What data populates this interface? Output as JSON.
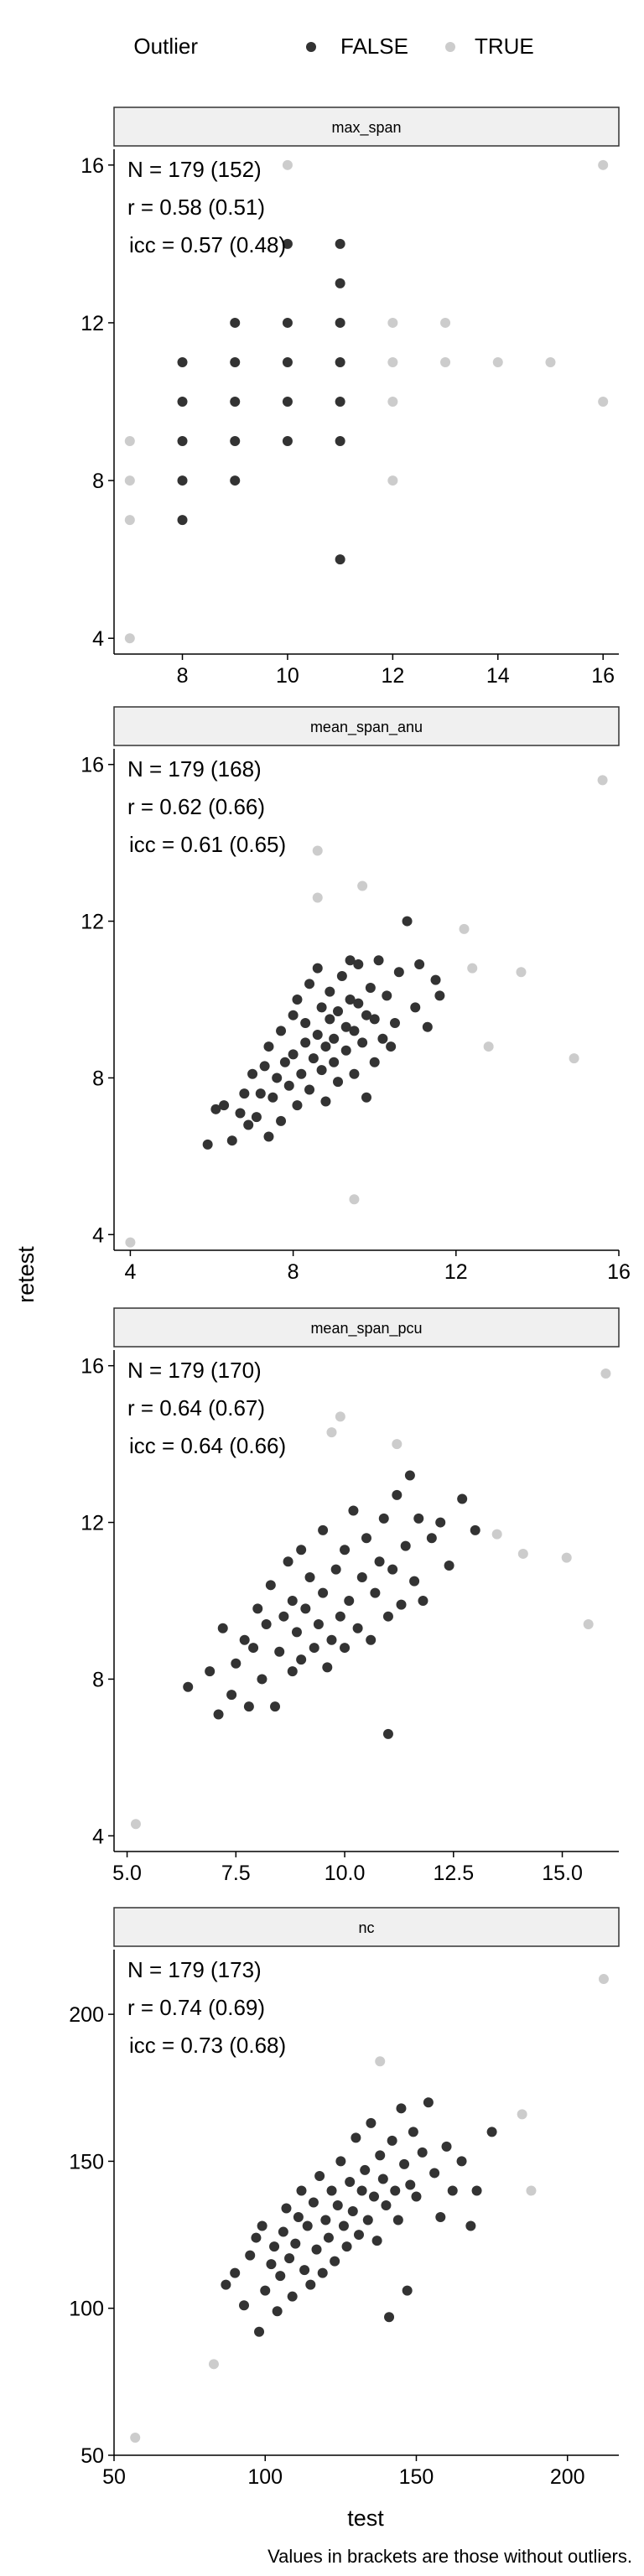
{
  "legend": {
    "title": "Outlier",
    "items": [
      {
        "label": "FALSE",
        "color": "#333333"
      },
      {
        "label": "TRUE",
        "color": "#cccccc"
      }
    ]
  },
  "xlabel": "test",
  "ylabel": "retest",
  "caption": "Values in brackets are those without outliers.",
  "colors": {
    "normal": "#333333",
    "outlier": "#cccccc",
    "strip_fill": "#f0f0f0"
  },
  "chart_data": [
    {
      "type": "scatter",
      "title": "max_span",
      "stats": [
        "N = 179 (152)",
        "r = 0.58 (0.51)",
        "icc = 0.57 (0.48)"
      ],
      "xlim": [
        6.7,
        16.3
      ],
      "ylim": [
        3.6,
        16.4
      ],
      "xticks": [
        8,
        10,
        12,
        14,
        16
      ],
      "xtick_labels": [
        "8",
        "10",
        "12",
        "14",
        "16"
      ],
      "yticks": [
        4,
        8,
        12,
        16
      ],
      "ytick_labels": [
        "4",
        "8",
        "12",
        "16"
      ],
      "normal": [
        [
          8,
          7
        ],
        [
          8,
          8
        ],
        [
          8,
          9
        ],
        [
          8,
          10
        ],
        [
          8,
          11
        ],
        [
          9,
          8
        ],
        [
          9,
          9
        ],
        [
          9,
          10
        ],
        [
          9,
          11
        ],
        [
          9,
          12
        ],
        [
          10,
          9
        ],
        [
          10,
          10
        ],
        [
          10,
          11
        ],
        [
          10,
          12
        ],
        [
          10,
          14
        ],
        [
          11,
          6
        ],
        [
          11,
          9
        ],
        [
          11,
          10
        ],
        [
          11,
          11
        ],
        [
          11,
          12
        ],
        [
          11,
          13
        ],
        [
          11,
          14
        ]
      ],
      "outlier": [
        [
          7,
          4
        ],
        [
          7,
          7
        ],
        [
          7,
          8
        ],
        [
          7,
          9
        ],
        [
          10,
          16
        ],
        [
          12,
          8
        ],
        [
          12,
          10
        ],
        [
          12,
          11
        ],
        [
          12,
          12
        ],
        [
          13,
          11
        ],
        [
          13,
          12
        ],
        [
          14,
          11
        ],
        [
          15,
          11
        ],
        [
          16,
          10
        ],
        [
          16,
          16
        ]
      ]
    },
    {
      "type": "scatter",
      "title": "mean_span_anu",
      "stats": [
        "N = 179 (168)",
        "r = 0.62 (0.66)",
        "icc = 0.61 (0.65)"
      ],
      "xlim": [
        3.6,
        16.0
      ],
      "ylim": [
        3.6,
        16.4
      ],
      "xticks": [
        4,
        8,
        12,
        16
      ],
      "xtick_labels": [
        "4",
        "8",
        "12",
        "16"
      ],
      "yticks": [
        4,
        8,
        12,
        16
      ],
      "ytick_labels": [
        "4",
        "8",
        "12",
        "16"
      ],
      "normal": [
        [
          5.9,
          6.3
        ],
        [
          6.1,
          7.2
        ],
        [
          6.3,
          7.3
        ],
        [
          6.5,
          6.4
        ],
        [
          6.7,
          7.1
        ],
        [
          6.8,
          7.6
        ],
        [
          6.9,
          6.8
        ],
        [
          7.0,
          8.1
        ],
        [
          7.1,
          7.0
        ],
        [
          7.2,
          7.6
        ],
        [
          7.3,
          8.3
        ],
        [
          7.4,
          6.5
        ],
        [
          7.4,
          8.8
        ],
        [
          7.5,
          7.5
        ],
        [
          7.6,
          8.0
        ],
        [
          7.7,
          6.9
        ],
        [
          7.7,
          9.2
        ],
        [
          7.8,
          8.4
        ],
        [
          7.9,
          7.8
        ],
        [
          8.0,
          8.6
        ],
        [
          8.0,
          9.6
        ],
        [
          8.1,
          7.3
        ],
        [
          8.1,
          10.0
        ],
        [
          8.2,
          8.1
        ],
        [
          8.3,
          8.9
        ],
        [
          8.3,
          9.4
        ],
        [
          8.4,
          7.7
        ],
        [
          8.4,
          10.4
        ],
        [
          8.5,
          8.5
        ],
        [
          8.6,
          9.1
        ],
        [
          8.6,
          10.8
        ],
        [
          8.7,
          8.2
        ],
        [
          8.7,
          9.8
        ],
        [
          8.8,
          7.4
        ],
        [
          8.8,
          8.8
        ],
        [
          8.9,
          9.5
        ],
        [
          8.9,
          10.2
        ],
        [
          9.0,
          8.4
        ],
        [
          9.0,
          9.0
        ],
        [
          9.1,
          7.9
        ],
        [
          9.1,
          9.7
        ],
        [
          9.2,
          10.6
        ],
        [
          9.3,
          8.7
        ],
        [
          9.3,
          9.3
        ],
        [
          9.4,
          10.0
        ],
        [
          9.4,
          11.0
        ],
        [
          9.5,
          8.1
        ],
        [
          9.5,
          9.2
        ],
        [
          9.6,
          9.9
        ],
        [
          9.6,
          10.9
        ],
        [
          9.7,
          8.9
        ],
        [
          9.8,
          9.6
        ],
        [
          9.8,
          7.5
        ],
        [
          9.9,
          10.3
        ],
        [
          10.0,
          8.4
        ],
        [
          10.0,
          9.5
        ],
        [
          10.1,
          11.0
        ],
        [
          10.2,
          9.0
        ],
        [
          10.3,
          10.1
        ],
        [
          10.4,
          8.8
        ],
        [
          10.5,
          9.4
        ],
        [
          10.6,
          10.7
        ],
        [
          10.8,
          12.0
        ],
        [
          11.0,
          9.8
        ],
        [
          11.1,
          10.9
        ],
        [
          11.3,
          9.3
        ],
        [
          11.5,
          10.5
        ],
        [
          11.6,
          10.1
        ]
      ],
      "outlier": [
        [
          4.0,
          3.8
        ],
        [
          8.6,
          12.6
        ],
        [
          8.6,
          13.8
        ],
        [
          9.5,
          4.9
        ],
        [
          9.7,
          12.9
        ],
        [
          12.2,
          11.8
        ],
        [
          12.4,
          10.8
        ],
        [
          12.8,
          8.8
        ],
        [
          13.6,
          10.7
        ],
        [
          14.9,
          8.5
        ],
        [
          15.6,
          15.6
        ]
      ]
    },
    {
      "type": "scatter",
      "title": "mean_span_pcu",
      "stats": [
        "N = 179 (170)",
        "r = 0.64 (0.67)",
        "icc = 0.64 (0.66)"
      ],
      "xlim": [
        4.7,
        16.3
      ],
      "ylim": [
        3.6,
        16.4
      ],
      "xticks": [
        5.0,
        7.5,
        10.0,
        12.5,
        15.0
      ],
      "xtick_labels": [
        "5.0",
        "7.5",
        "10.0",
        "12.5",
        "15.0"
      ],
      "yticks": [
        4,
        8,
        12,
        16
      ],
      "ytick_labels": [
        "4",
        "8",
        "12",
        "16"
      ],
      "normal": [
        [
          6.4,
          7.8
        ],
        [
          6.9,
          8.2
        ],
        [
          7.1,
          7.1
        ],
        [
          7.2,
          9.3
        ],
        [
          7.4,
          7.6
        ],
        [
          7.5,
          8.4
        ],
        [
          7.7,
          9.0
        ],
        [
          7.8,
          7.3
        ],
        [
          7.9,
          8.8
        ],
        [
          8.0,
          9.8
        ],
        [
          8.1,
          8.0
        ],
        [
          8.2,
          9.4
        ],
        [
          8.3,
          10.4
        ],
        [
          8.4,
          7.3
        ],
        [
          8.5,
          8.7
        ],
        [
          8.6,
          9.6
        ],
        [
          8.7,
          11.0
        ],
        [
          8.8,
          8.2
        ],
        [
          8.8,
          10.0
        ],
        [
          8.9,
          9.2
        ],
        [
          9.0,
          8.5
        ],
        [
          9.0,
          11.3
        ],
        [
          9.1,
          9.8
        ],
        [
          9.2,
          10.6
        ],
        [
          9.3,
          8.8
        ],
        [
          9.4,
          9.4
        ],
        [
          9.5,
          10.2
        ],
        [
          9.5,
          11.8
        ],
        [
          9.6,
          8.3
        ],
        [
          9.7,
          9.0
        ],
        [
          9.8,
          10.8
        ],
        [
          9.9,
          9.6
        ],
        [
          10.0,
          11.3
        ],
        [
          10.0,
          8.8
        ],
        [
          10.1,
          10.0
        ],
        [
          10.2,
          12.3
        ],
        [
          10.3,
          9.3
        ],
        [
          10.4,
          10.6
        ],
        [
          10.5,
          11.6
        ],
        [
          10.6,
          9.0
        ],
        [
          10.7,
          10.2
        ],
        [
          10.8,
          11.0
        ],
        [
          10.9,
          12.1
        ],
        [
          11.0,
          9.6
        ],
        [
          11.0,
          6.6
        ],
        [
          11.1,
          10.8
        ],
        [
          11.2,
          12.7
        ],
        [
          11.3,
          9.9
        ],
        [
          11.4,
          11.4
        ],
        [
          11.5,
          13.2
        ],
        [
          11.6,
          10.5
        ],
        [
          11.7,
          12.1
        ],
        [
          11.8,
          10.0
        ],
        [
          12.0,
          11.6
        ],
        [
          12.2,
          12.0
        ],
        [
          12.4,
          10.9
        ],
        [
          12.7,
          12.6
        ],
        [
          13.0,
          11.8
        ]
      ],
      "outlier": [
        [
          5.2,
          4.3
        ],
        [
          9.7,
          14.3
        ],
        [
          9.9,
          14.7
        ],
        [
          11.2,
          14.0
        ],
        [
          13.5,
          11.7
        ],
        [
          14.1,
          11.2
        ],
        [
          15.1,
          11.1
        ],
        [
          15.6,
          9.4
        ],
        [
          16.0,
          15.8
        ]
      ]
    },
    {
      "type": "scatter",
      "title": "nc",
      "stats": [
        "N = 179 (173)",
        "r = 0.74 (0.69)",
        "icc = 0.73 (0.68)"
      ],
      "xlim": [
        50,
        217
      ],
      "ylim": [
        50,
        222
      ],
      "xticks": [
        50,
        100,
        150,
        200
      ],
      "xtick_labels": [
        "50",
        "100",
        "150",
        "200"
      ],
      "yticks": [
        50,
        100,
        150,
        200
      ],
      "ytick_labels": [
        "50",
        "100",
        "150",
        "200"
      ],
      "normal": [
        [
          87,
          108
        ],
        [
          90,
          112
        ],
        [
          93,
          101
        ],
        [
          95,
          118
        ],
        [
          97,
          124
        ],
        [
          98,
          92
        ],
        [
          99,
          128
        ],
        [
          100,
          106
        ],
        [
          102,
          115
        ],
        [
          103,
          121
        ],
        [
          104,
          99
        ],
        [
          105,
          111
        ],
        [
          106,
          126
        ],
        [
          107,
          134
        ],
        [
          108,
          117
        ],
        [
          109,
          104
        ],
        [
          110,
          122
        ],
        [
          111,
          131
        ],
        [
          112,
          140
        ],
        [
          113,
          113
        ],
        [
          114,
          128
        ],
        [
          115,
          108
        ],
        [
          116,
          136
        ],
        [
          117,
          120
        ],
        [
          118,
          145
        ],
        [
          119,
          112
        ],
        [
          120,
          130
        ],
        [
          121,
          124
        ],
        [
          122,
          140
        ],
        [
          123,
          116
        ],
        [
          124,
          135
        ],
        [
          125,
          150
        ],
        [
          126,
          128
        ],
        [
          127,
          121
        ],
        [
          128,
          143
        ],
        [
          129,
          133
        ],
        [
          130,
          158
        ],
        [
          131,
          125
        ],
        [
          132,
          140
        ],
        [
          133,
          147
        ],
        [
          134,
          130
        ],
        [
          135,
          163
        ],
        [
          136,
          138
        ],
        [
          137,
          123
        ],
        [
          138,
          152
        ],
        [
          139,
          144
        ],
        [
          140,
          135
        ],
        [
          141,
          97
        ],
        [
          142,
          157
        ],
        [
          143,
          140
        ],
        [
          144,
          130
        ],
        [
          145,
          168
        ],
        [
          146,
          149
        ],
        [
          147,
          106
        ],
        [
          148,
          142
        ],
        [
          149,
          160
        ],
        [
          150,
          138
        ],
        [
          152,
          153
        ],
        [
          154,
          170
        ],
        [
          156,
          146
        ],
        [
          158,
          131
        ],
        [
          160,
          155
        ],
        [
          162,
          140
        ],
        [
          165,
          150
        ],
        [
          168,
          128
        ],
        [
          170,
          140
        ],
        [
          175,
          160
        ]
      ],
      "outlier": [
        [
          57,
          56
        ],
        [
          83,
          81
        ],
        [
          138,
          184
        ],
        [
          185,
          166
        ],
        [
          188,
          140
        ],
        [
          212,
          212
        ]
      ]
    }
  ]
}
